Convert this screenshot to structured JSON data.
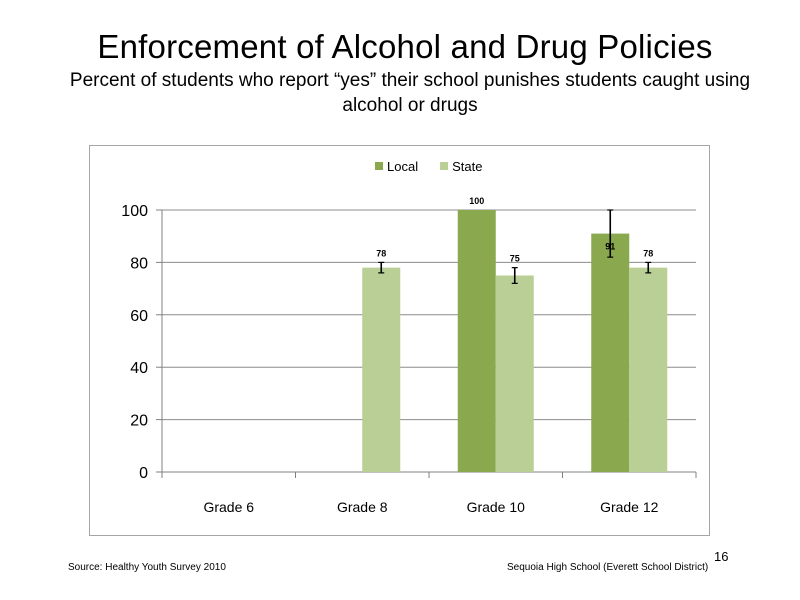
{
  "slide": {
    "title": "Enforcement of Alcohol and Drug Policies",
    "subtitle": "Percent of students who report “yes” their school punishes students caught using alcohol or drugs",
    "source": "Source: Healthy Youth Survey 2010",
    "school": "Sequoia High School (Everett School District)",
    "page_number": "16"
  },
  "chart_data": {
    "type": "bar",
    "categories": [
      "Grade 6",
      "Grade 8",
      "Grade 10",
      "Grade 12"
    ],
    "series": [
      {
        "name": "Local",
        "color": "#8aa84e",
        "values": [
          null,
          null,
          100,
          91
        ],
        "labels": [
          "",
          "",
          "100",
          "91"
        ],
        "error_low": [
          null,
          null,
          null,
          82
        ],
        "error_high": [
          null,
          null,
          null,
          100
        ]
      },
      {
        "name": "State",
        "color": "#b9cf95",
        "values": [
          null,
          78,
          75,
          78
        ],
        "labels": [
          "",
          "78",
          "75",
          "78"
        ],
        "error_low": [
          null,
          76,
          72,
          76
        ],
        "error_high": [
          null,
          80,
          78,
          80
        ]
      }
    ],
    "ylim": [
      0,
      100
    ],
    "yticks": [
      0,
      20,
      40,
      60,
      80,
      100
    ],
    "grid": true,
    "legend": "top-center",
    "title": "",
    "xlabel": "",
    "ylabel": ""
  }
}
